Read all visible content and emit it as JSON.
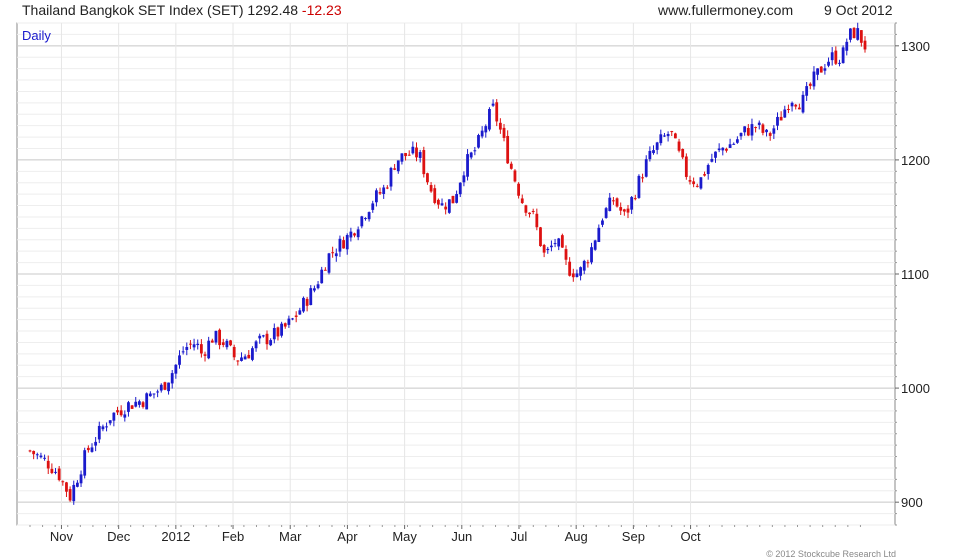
{
  "header": {
    "index_name": "Thailand Bangkok SET Index (SET)",
    "last_value": "1292.48",
    "change": "-12.23",
    "site": "www.fullermoney.com",
    "date": "9 Oct 2012"
  },
  "footer": {
    "copyright": "© 2012 Stockcube Research Ltd"
  },
  "colors": {
    "up": "#1a1acc",
    "down": "#dd1111",
    "grid": "#c8c8c8",
    "frame": "#888888"
  },
  "chart_data": {
    "type": "candlestick",
    "label": "Daily",
    "title": "Thailand Bangkok SET Index (SET)",
    "xlabels": [
      "Nov",
      "Dec",
      "2012",
      "Feb",
      "Mar",
      "Apr",
      "May",
      "Jun",
      "Jul",
      "Aug",
      "Sep",
      "Oct"
    ],
    "yticks": [
      900,
      1000,
      1100,
      1200,
      1300
    ],
    "ylim": [
      880,
      1320
    ],
    "grid": true,
    "approx_close": [
      [
        0.0,
        945
      ],
      [
        0.3,
        935
      ],
      [
        0.5,
        925
      ],
      [
        0.7,
        905
      ],
      [
        1.0,
        945
      ],
      [
        1.2,
        960
      ],
      [
        1.4,
        975
      ],
      [
        1.7,
        985
      ],
      [
        2.0,
        990
      ],
      [
        2.3,
        1000
      ],
      [
        2.5,
        1015
      ],
      [
        2.7,
        1035
      ],
      [
        2.9,
        1040
      ],
      [
        3.0,
        1030
      ],
      [
        3.2,
        1045
      ],
      [
        3.4,
        1040
      ],
      [
        3.6,
        1025
      ],
      [
        3.8,
        1030
      ],
      [
        4.0,
        1040
      ],
      [
        4.2,
        1045
      ],
      [
        4.4,
        1050
      ],
      [
        4.6,
        1060
      ],
      [
        4.8,
        1075
      ],
      [
        5.0,
        1090
      ],
      [
        5.2,
        1115
      ],
      [
        5.4,
        1125
      ],
      [
        5.6,
        1135
      ],
      [
        5.8,
        1150
      ],
      [
        6.0,
        1165
      ],
      [
        6.2,
        1175
      ],
      [
        6.4,
        1200
      ],
      [
        6.6,
        1205
      ],
      [
        6.8,
        1205
      ],
      [
        7.0,
        1175
      ],
      [
        7.2,
        1160
      ],
      [
        7.4,
        1165
      ],
      [
        7.6,
        1195
      ],
      [
        7.8,
        1210
      ],
      [
        8.0,
        1235
      ],
      [
        8.1,
        1245
      ],
      [
        8.2,
        1230
      ],
      [
        8.4,
        1195
      ],
      [
        8.6,
        1165
      ],
      [
        8.8,
        1150
      ],
      [
        9.0,
        1115
      ],
      [
        9.2,
        1130
      ],
      [
        9.4,
        1105
      ],
      [
        9.6,
        1100
      ],
      [
        9.8,
        1120
      ],
      [
        10.0,
        1150
      ],
      [
        10.2,
        1165
      ],
      [
        10.4,
        1150
      ],
      [
        10.6,
        1175
      ],
      [
        10.8,
        1200
      ],
      [
        11.0,
        1215
      ],
      [
        11.2,
        1225
      ],
      [
        11.3,
        1210
      ],
      [
        11.5,
        1185
      ],
      [
        11.7,
        1180
      ],
      [
        11.9,
        1200
      ],
      [
        12.1,
        1210
      ],
      [
        12.3,
        1215
      ],
      [
        12.5,
        1225
      ],
      [
        12.7,
        1230
      ],
      [
        12.9,
        1220
      ],
      [
        13.1,
        1235
      ],
      [
        13.3,
        1255
      ],
      [
        13.5,
        1250
      ],
      [
        13.7,
        1270
      ],
      [
        13.9,
        1285
      ],
      [
        14.0,
        1290
      ],
      [
        14.2,
        1290
      ],
      [
        14.3,
        1308
      ],
      [
        14.45,
        1313
      ],
      [
        14.6,
        1300
      ]
    ]
  }
}
